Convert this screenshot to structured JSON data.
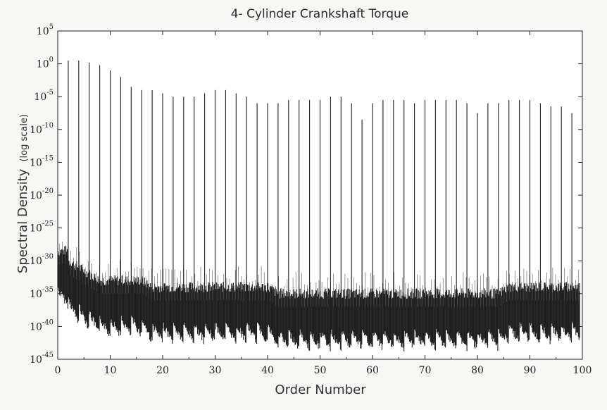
{
  "chart_data": {
    "type": "line",
    "title": "4- Cylinder Crankshaft Torque",
    "xlabel": "Order Number",
    "ylabel": "Spectral Density",
    "ylabel_suffix": "(log scale)",
    "y_scale": "log",
    "xlim": [
      0,
      100
    ],
    "ylim_exponent": [
      -45,
      5
    ],
    "x_ticks": [
      "0",
      "10",
      "20",
      "30",
      "40",
      "50",
      "60",
      "70",
      "80",
      "90",
      "100"
    ],
    "y_tick_base": "10",
    "y_tick_exponents": [
      "5",
      "0",
      "-5",
      "-10",
      "-15",
      "-20",
      "-25",
      "-30",
      "-35",
      "-40",
      "-45"
    ],
    "grid": false,
    "line_color": "#1e1e1e",
    "series": [
      {
        "x": [
          2,
          4,
          6,
          8,
          10,
          12,
          14,
          16,
          18,
          20,
          22,
          24,
          26,
          28,
          30,
          32,
          34,
          36,
          38,
          40,
          42,
          44,
          46,
          48,
          50,
          52,
          54,
          56,
          58,
          60,
          62,
          64,
          66,
          68,
          70,
          72,
          74,
          76,
          78,
          80,
          82,
          84,
          86,
          88,
          90,
          92,
          94,
          96,
          98
        ],
        "log10_peak": [
          0.5,
          0.5,
          0.2,
          -0.2,
          -1,
          -2,
          -3.5,
          -4,
          -4,
          -4.5,
          -5,
          -5,
          -5,
          -4.5,
          -4,
          -4,
          -4.5,
          -5,
          -6,
          -6,
          -6,
          -5.5,
          -5.5,
          -5.5,
          -5.5,
          -5,
          -5,
          -6,
          -8.5,
          -6,
          -5.5,
          -5.5,
          -5.5,
          -6,
          -5.5,
          -5.5,
          -5.5,
          -5.5,
          -6,
          -7.5,
          -6,
          -6,
          -5.5,
          -5.5,
          -5.5,
          -6,
          -6.5,
          -6.5,
          -7.5
        ],
        "log10_floor": [
          -34,
          -35,
          -36,
          -37,
          -37,
          -37,
          -37,
          -37,
          -38,
          -38,
          -38,
          -38,
          -38,
          -38,
          -38,
          -38,
          -38,
          -38,
          -38,
          -38,
          -39,
          -39,
          -39,
          -39,
          -39,
          -39,
          -39,
          -39,
          -39,
          -39,
          -39,
          -39,
          -39,
          -39,
          -39,
          -39,
          -39,
          -39,
          -39,
          -39,
          -39,
          -39,
          -38,
          -38,
          -38,
          -38,
          -38,
          -38,
          -38
        ]
      }
    ]
  }
}
